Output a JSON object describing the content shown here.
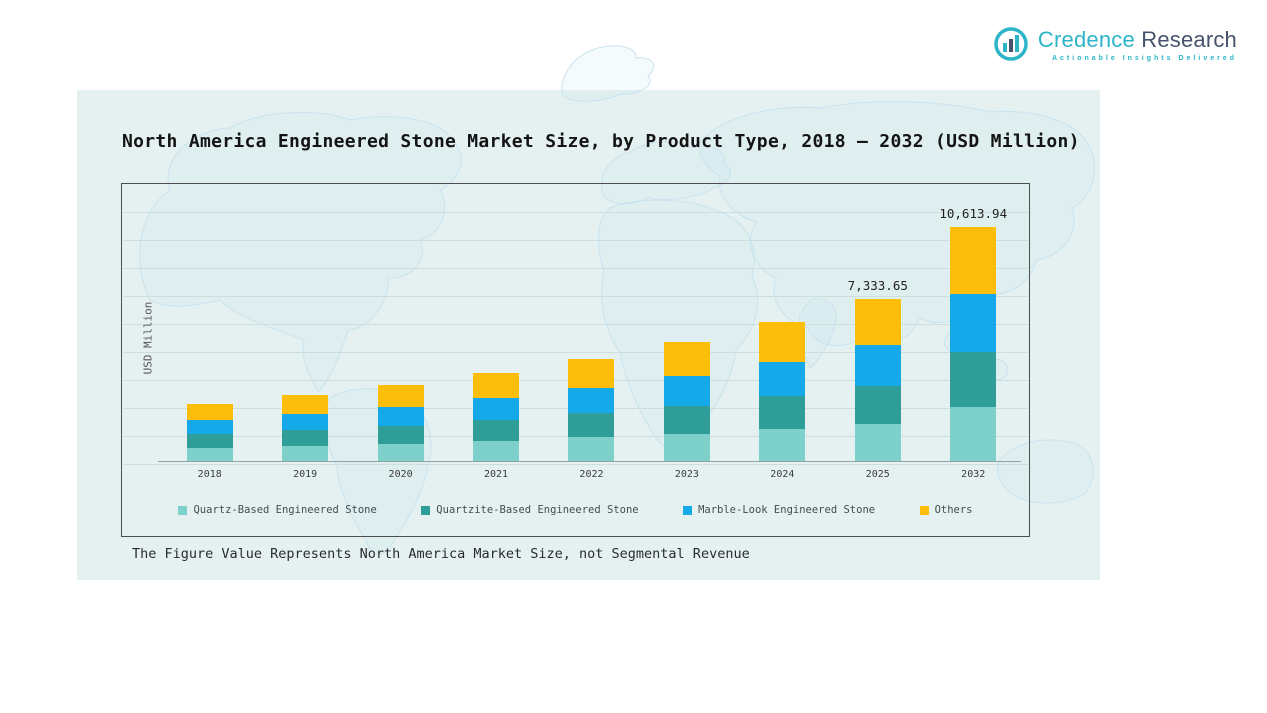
{
  "logo": {
    "brand_primary": "Credence",
    "brand_secondary": "Research",
    "tagline": "Actionable Insights Delivered"
  },
  "title": "North America Engineered Stone Market Size, by Product Type, 2018 – 2032 (USD Million)",
  "footnote": "The Figure Value Represents North America Market Size, not Segmental Revenue",
  "chart_data": {
    "type": "bar",
    "stacked": true,
    "title": "North America Engineered Stone Market Size, by Product Type, 2018 – 2032 (USD Million)",
    "xlabel": "",
    "ylabel": "USD Million",
    "ylim": [
      0,
      11000
    ],
    "grid": "horizontal",
    "legend_position": "bottom-inside",
    "categories": [
      "2018",
      "2019",
      "2020",
      "2021",
      "2022",
      "2023",
      "2024",
      "2025",
      "2032"
    ],
    "series": [
      {
        "name": "Quartz-Based Engineered Stone",
        "color": "#7ed0cb",
        "values": [
          600,
          690,
          795,
          920,
          1070,
          1240,
          1450,
          1686.74,
          2441.21
        ]
      },
      {
        "name": "Quartzite-Based Engineered Stone",
        "color": "#2f9e99",
        "values": [
          610,
          705,
          810,
          940,
          1090,
          1270,
          1480,
          1723.41,
          2494.28
        ]
      },
      {
        "name": "Marble-Look Engineered Stone",
        "color": "#15a9e9",
        "values": [
          650,
          750,
          860,
          1000,
          1160,
          1350,
          1575,
          1833.41,
          2653.48
        ]
      },
      {
        "name": "Others",
        "color": "#fcbe0a",
        "values": [
          740,
          855,
          985,
          1140,
          1330,
          1540,
          1795,
          2090.09,
          3024.97
        ]
      }
    ],
    "value_labels": {
      "2025": "7,333.65",
      "2032": "10,613.94"
    },
    "labeled_totals_note": "Only 2025 (7,333.65) and 2032 (10,613.94) totals are labeled in the figure; other bar values are estimated from bar heights."
  }
}
